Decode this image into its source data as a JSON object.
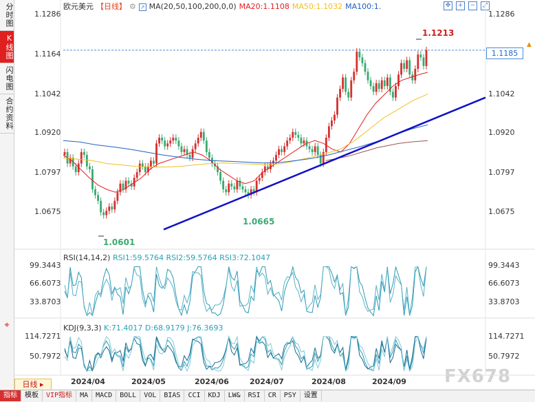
{
  "sidebar": {
    "items": [
      {
        "label": "分时图",
        "active": false
      },
      {
        "label": "K线图",
        "active": true
      },
      {
        "label": "闪电图",
        "active": false
      },
      {
        "label": "合约资料",
        "active": false
      }
    ],
    "icon": "crosshair-icon"
  },
  "header": {
    "symbol": "欧元美元",
    "period": "【日线】",
    "ma_label": "MA(20,50,100,200,0,0)",
    "ma20": "MA20:1.1108",
    "ma50": "MA50:1.1032",
    "ma100": "MA100:1."
  },
  "colors": {
    "ma20": "#e02020",
    "ma50": "#f0c020",
    "ma100": "#2060c0",
    "ma200": "#a05050",
    "up": "#d63030",
    "down": "#3aaa70",
    "trendline": "#1010c8",
    "price_line": "#4a8ad8"
  },
  "current_price": "1.1185",
  "annotations": {
    "high_label": "1.1213",
    "low_label": "1.0601",
    "mid_low_label": "1.0665"
  },
  "rsi_panel": {
    "label": "RSI(14,14,2)",
    "rsi1": "RSI1:59.5764",
    "rsi2": "RSI2:59.5764",
    "rsi3": "RSI3:72.1047",
    "ticks": [
      "99.3443",
      "66.6073",
      "33.8703"
    ]
  },
  "kdj_panel": {
    "label": "KDJ(9,3,3)",
    "k": "K:71.4017",
    "d": "D:68.9179",
    "j": "J:76.3693",
    "ticks": [
      "114.7271",
      "50.7972"
    ]
  },
  "x_dates": [
    "2024/04",
    "2024/05",
    "2024/06",
    "2024/07",
    "2024/08",
    "2024/09"
  ],
  "day_tab": "日线",
  "bottom_tabs": [
    {
      "label": "指标",
      "active": true
    },
    {
      "label": "模板"
    },
    {
      "label": "VIP指标",
      "vip": true
    },
    {
      "label": "MA"
    },
    {
      "label": "MACD"
    },
    {
      "label": "BOLL"
    },
    {
      "label": "VOL"
    },
    {
      "label": "BIAS"
    },
    {
      "label": "CCI"
    },
    {
      "label": "KDJ"
    },
    {
      "label": "LW&"
    },
    {
      "label": "RSI"
    },
    {
      "label": "CR"
    },
    {
      "label": "PSY"
    },
    {
      "label": "设置"
    }
  ],
  "watermark": "FX678",
  "chart_data": {
    "type": "candlestick",
    "title": "欧元美元【日线】",
    "y_ticks": [
      "1.1286",
      "1.1164",
      "1.1042",
      "1.0920",
      "1.0797",
      "1.0675"
    ],
    "ylim": [
      1.0597,
      1.1312
    ],
    "x_categories": [
      "2024/04",
      "2024/05",
      "2024/06",
      "2024/07",
      "2024/08",
      "2024/09"
    ],
    "close_series": [
      1.083,
      1.079,
      1.081,
      1.078,
      1.076,
      1.079,
      1.083,
      1.082,
      1.078,
      1.077,
      1.07,
      1.068,
      1.066,
      1.062,
      1.061,
      1.0625,
      1.064,
      1.063,
      1.066,
      1.069,
      1.072,
      1.07,
      1.073,
      1.072,
      1.071,
      1.074,
      1.076,
      1.079,
      1.078,
      1.076,
      1.078,
      1.08,
      1.079,
      1.086,
      1.088,
      1.087,
      1.085,
      1.086,
      1.087,
      1.088,
      1.087,
      1.085,
      1.083,
      1.084,
      1.082,
      1.081,
      1.084,
      1.086,
      1.088,
      1.09,
      1.087,
      1.083,
      1.081,
      1.079,
      1.078,
      1.076,
      1.073,
      1.07,
      1.069,
      1.072,
      1.071,
      1.07,
      1.073,
      1.071,
      1.07,
      1.069,
      1.068,
      1.07,
      1.069,
      1.073,
      1.074,
      1.076,
      1.078,
      1.077,
      1.079,
      1.08,
      1.082,
      1.084,
      1.083,
      1.085,
      1.087,
      1.088,
      1.09,
      1.089,
      1.088,
      1.086,
      1.087,
      1.085,
      1.084,
      1.083,
      1.085,
      1.082,
      1.079,
      1.083,
      1.088,
      1.092,
      1.094,
      1.096,
      1.102,
      1.105,
      1.109,
      1.104,
      1.102,
      1.108,
      1.111,
      1.118,
      1.116,
      1.114,
      1.111,
      1.108,
      1.106,
      1.104,
      1.107,
      1.105,
      1.108,
      1.106,
      1.109,
      1.104,
      1.102,
      1.106,
      1.11,
      1.114,
      1.112,
      1.115,
      1.11,
      1.108,
      1.112,
      1.117,
      1.116,
      1.113,
      1.1185
    ],
    "ma20": [
      1.082,
      1.08,
      1.077,
      1.074,
      1.0715,
      1.07,
      1.069,
      1.07,
      1.072,
      1.074,
      1.077,
      1.079,
      1.08,
      1.081,
      1.082,
      1.083,
      1.082,
      1.08,
      1.077,
      1.075,
      1.073,
      1.072,
      1.073,
      1.076,
      1.078,
      1.08,
      1.082,
      1.084,
      1.086,
      1.087,
      1.086,
      1.084,
      1.083,
      1.086,
      1.091,
      1.096,
      1.1,
      1.103,
      1.106,
      1.108,
      1.109,
      1.11,
      1.1108
    ],
    "ma50": [
      1.081,
      1.0805,
      1.08,
      1.079,
      1.0785,
      1.078,
      1.0778,
      1.0778,
      1.078,
      1.0785,
      1.079,
      1.0792,
      1.079,
      1.0788,
      1.0785,
      1.079,
      1.08,
      1.0812,
      1.0825,
      1.084,
      1.087,
      1.091,
      1.095,
      1.098,
      1.101,
      1.1032
    ],
    "ma100": [
      1.087,
      1.0865,
      1.0855,
      1.0848,
      1.084,
      1.083,
      1.082,
      1.0812,
      1.0805,
      1.08,
      1.0798,
      1.0795,
      1.0792,
      1.0793,
      1.08,
      1.0808,
      1.082,
      1.0835,
      1.085,
      1.0868,
      1.089,
      1.091,
      1.0925
    ],
    "ma200": [
      1.08,
      1.0805,
      1.081,
      1.0815,
      1.0822,
      1.083,
      1.0837,
      1.0845,
      1.085,
      1.0855,
      1.086,
      1.0863,
      1.0866,
      1.0868,
      1.087
    ],
    "trendline": {
      "from": [
        "2024/04",
        1.056
      ],
      "to": [
        "2024/09",
        1.102
      ]
    },
    "high": 1.1213,
    "low": 1.0601,
    "rsi": {
      "ticks": [
        "99.3443",
        "66.6073",
        "33.8703"
      ],
      "rsi1": 59.5764,
      "rsi2": 59.5764,
      "rsi3": 72.1047
    },
    "kdj": {
      "ticks": [
        "114.7271",
        "50.7972"
      ],
      "k": 71.4017,
      "d": 68.9179,
      "j": 76.3693
    }
  }
}
